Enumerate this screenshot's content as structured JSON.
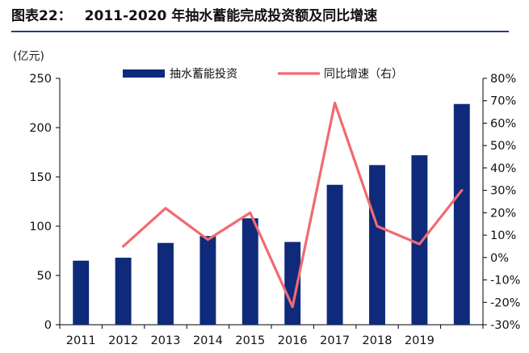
{
  "header": {
    "label": "图表22：",
    "title": "2011-2020 年抽水蓄能完成投资额及同比增速"
  },
  "chart_data": {
    "type": "bar",
    "categories": [
      "2011",
      "2012",
      "2013",
      "2014",
      "2015",
      "2016",
      "2017",
      "2018",
      "2019",
      ""
    ],
    "series": [
      {
        "name": "抽水蓄能投资",
        "kind": "bar",
        "axis": "left",
        "values": [
          65,
          68,
          83,
          90,
          108,
          84,
          142,
          162,
          172,
          224
        ]
      },
      {
        "name": "同比增速（右）",
        "kind": "line",
        "axis": "right",
        "values": [
          null,
          0.05,
          0.22,
          0.08,
          0.2,
          -0.22,
          0.69,
          0.14,
          0.06,
          0.3
        ]
      }
    ],
    "ylabel": "(亿元)",
    "ylim": [
      0,
      250
    ],
    "yticks": [
      0,
      50,
      100,
      150,
      200,
      250
    ],
    "y2lim": [
      -0.3,
      0.8
    ],
    "y2ticks": [
      "-30%",
      "-20%",
      "-10%",
      "0%",
      "10%",
      "20%",
      "30%",
      "40%",
      "50%",
      "60%",
      "70%",
      "80%"
    ],
    "colors": {
      "bar": "#0f2a7a",
      "line": "#f06a72"
    },
    "legend_position": "top"
  }
}
